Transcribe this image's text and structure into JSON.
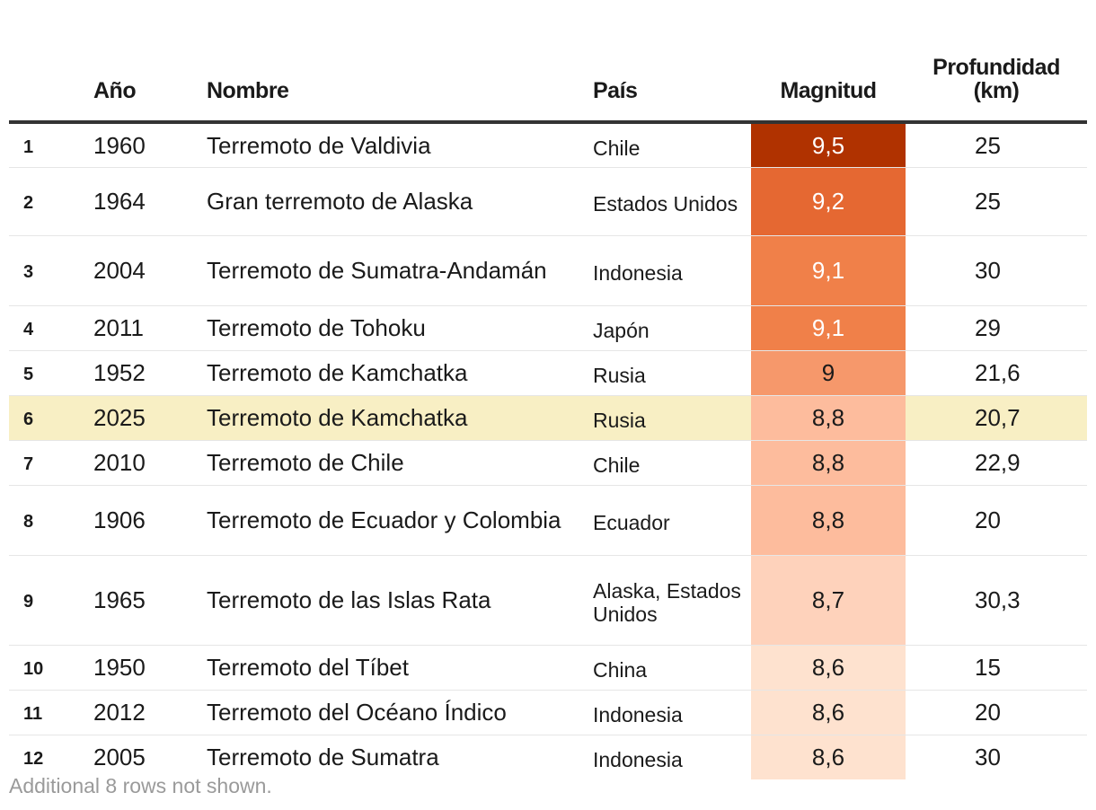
{
  "chart_data": {
    "type": "table",
    "columns": [
      "",
      "Año",
      "Nombre",
      "País",
      "Magnitud",
      "Profundidad (km)"
    ],
    "rows": [
      {
        "rank": "1",
        "year": "1960",
        "name": "Terremoto de Valdivia",
        "country": "Chile",
        "magnitude": "9,5",
        "depth": "25"
      },
      {
        "rank": "2",
        "year": "1964",
        "name": "Gran terremoto de Alaska",
        "country": "Estados Unidos",
        "magnitude": "9,2",
        "depth": "25"
      },
      {
        "rank": "3",
        "year": "2004",
        "name": "Terremoto de Sumatra-Andamán",
        "country": "Indonesia",
        "magnitude": "9,1",
        "depth": "30"
      },
      {
        "rank": "4",
        "year": "2011",
        "name": "Terremoto de Tohoku",
        "country": "Japón",
        "magnitude": "9,1",
        "depth": "29"
      },
      {
        "rank": "5",
        "year": "1952",
        "name": "Terremoto de Kamchatka",
        "country": "Rusia",
        "magnitude": "9",
        "depth": "21,6"
      },
      {
        "rank": "6",
        "year": "2025",
        "name": "Terremoto de Kamchatka",
        "country": "Rusia",
        "magnitude": "8,8",
        "depth": "20,7"
      },
      {
        "rank": "7",
        "year": "2010",
        "name": "Terremoto de Chile",
        "country": "Chile",
        "magnitude": "8,8",
        "depth": "22,9"
      },
      {
        "rank": "8",
        "year": "1906",
        "name": "Terremoto de Ecuador y Colombia",
        "country": "Ecuador",
        "magnitude": "8,8",
        "depth": "20"
      },
      {
        "rank": "9",
        "year": "1965",
        "name": "Terremoto de las Islas Rata",
        "country": "Alaska, Estados Unidos",
        "magnitude": "8,7",
        "depth": "30,3"
      },
      {
        "rank": "10",
        "year": "1950",
        "name": "Terremoto del Tíbet",
        "country": "China",
        "magnitude": "8,6",
        "depth": "15"
      },
      {
        "rank": "11",
        "year": "2012",
        "name": "Terremoto del Océano Índico",
        "country": "Indonesia",
        "magnitude": "8,6",
        "depth": "20"
      },
      {
        "rank": "12",
        "year": "2005",
        "name": "Terremoto de Sumatra",
        "country": "Indonesia",
        "magnitude": "8,6",
        "depth": "30"
      }
    ],
    "highlighted_row_rank": "6",
    "footnote": "Additional 8 rows not shown."
  },
  "colors": {
    "highlight_row": "#f8efc4",
    "magnitude_scale": {
      "9,5": "#b03200",
      "9,2": "#e56832",
      "9,1": "#f08049",
      "9": "#f6986b",
      "8,8": "#fdbc9d",
      "8,7": "#fed2bb",
      "8,6": "#fee2cf"
    },
    "magnitude_text_light": "#ffffff",
    "magnitude_text_dark": "#1a1a1a"
  }
}
